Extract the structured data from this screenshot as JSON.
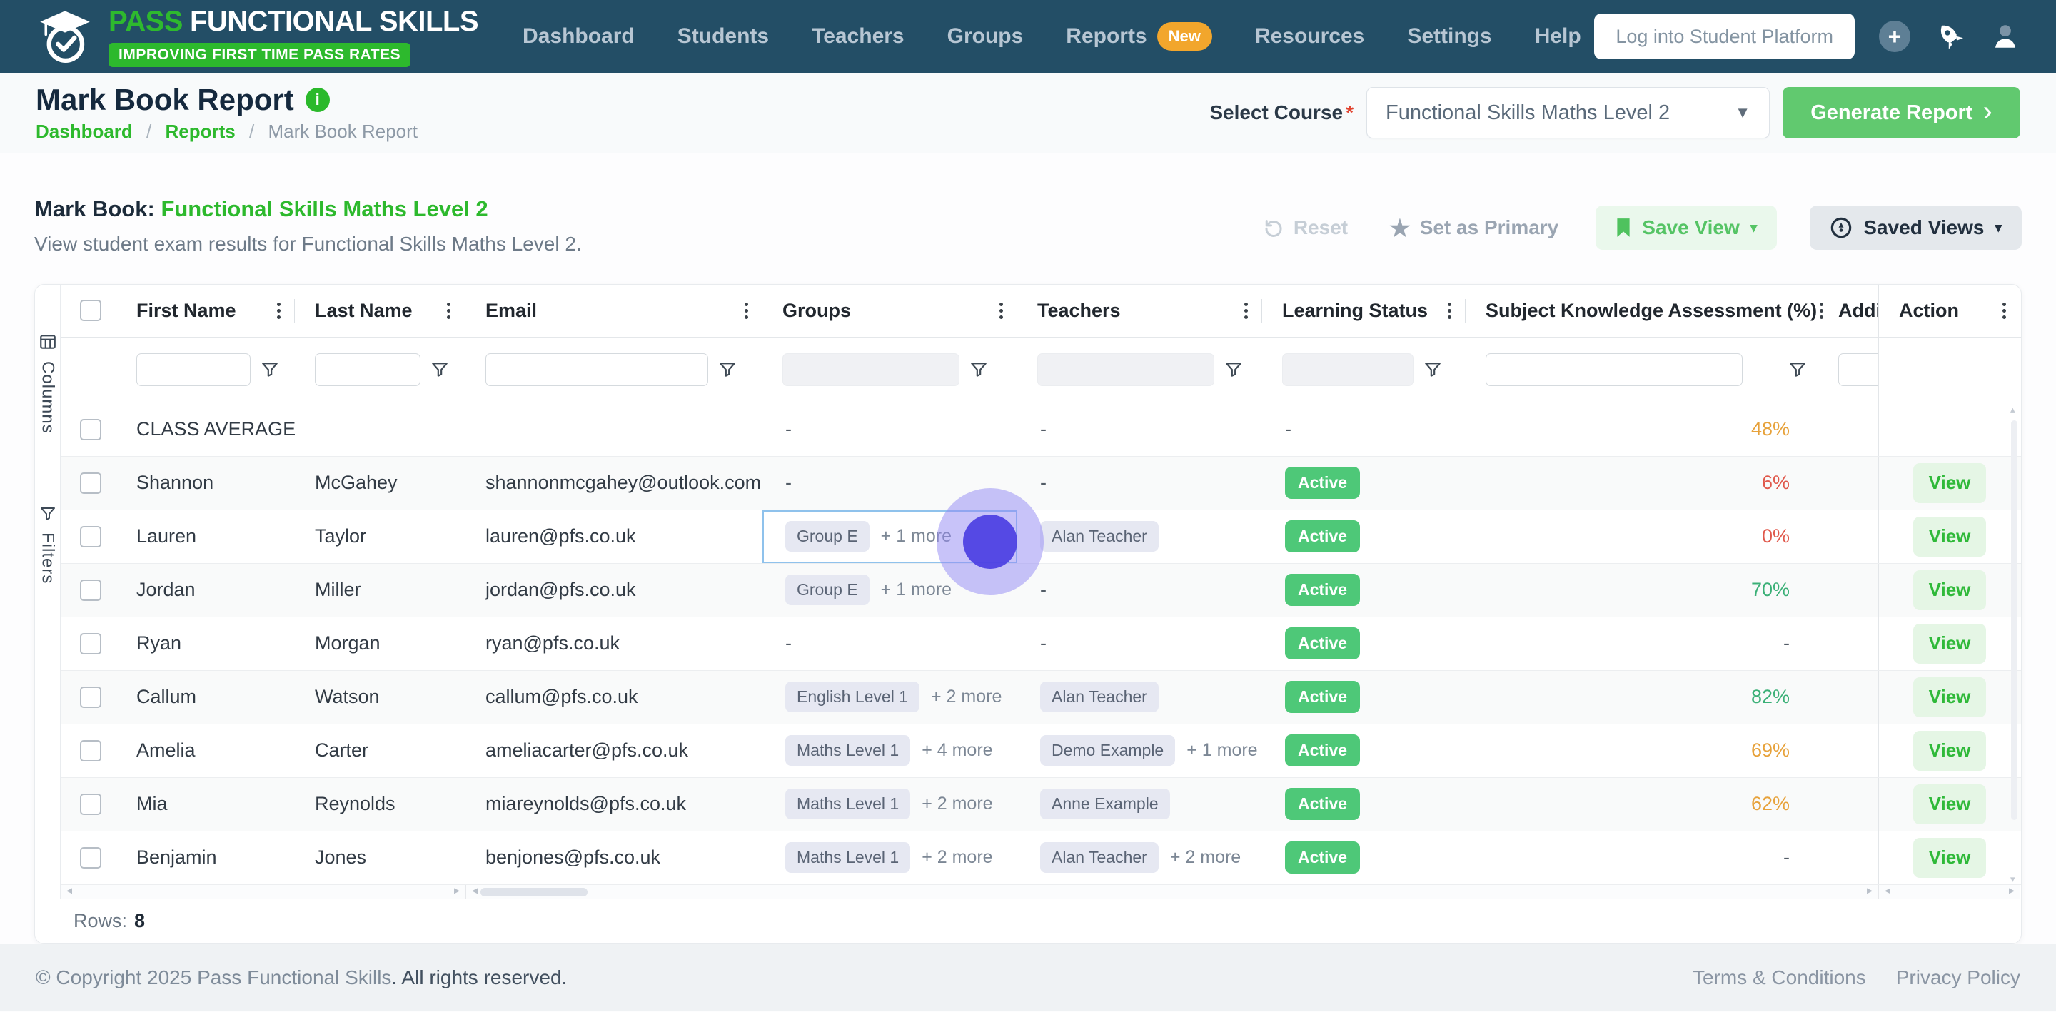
{
  "colors": {
    "brand_green": "#2db92d",
    "navbar": "#234e66",
    "badge_amber": "#f2a62c",
    "generate_green": "#61c96f",
    "active_green": "#4ec878"
  },
  "navbar": {
    "logo": {
      "brand_green": "PASS",
      "brand_white": "FUNCTIONAL SKILLS",
      "tagline": "IMPROVING FIRST TIME PASS RATES"
    },
    "items": [
      {
        "label": "Dashboard"
      },
      {
        "label": "Students"
      },
      {
        "label": "Teachers"
      },
      {
        "label": "Groups"
      },
      {
        "label": "Reports",
        "badge": "New"
      },
      {
        "label": "Resources"
      },
      {
        "label": "Settings"
      },
      {
        "label": "Help"
      }
    ],
    "login_button": "Log into Student Platform",
    "icons": [
      "plus-circle",
      "rocket",
      "user"
    ]
  },
  "page_header": {
    "title": "Mark Book Report",
    "breadcrumb": {
      "links": [
        "Dashboard",
        "Reports"
      ],
      "current": "Mark Book Report",
      "separator": "/"
    },
    "select_course_label": "Select Course",
    "required_mark": "*",
    "course_value": "Functional Skills Maths Level 2",
    "generate_button": "Generate Report"
  },
  "toolbar": {
    "heading_prefix": "Mark Book:",
    "heading_course": "Functional Skills Maths Level 2",
    "subtitle": "View student exam results for Functional Skills Maths Level 2.",
    "reset_label": "Reset",
    "set_primary_label": "Set as Primary",
    "save_view_label": "Save View",
    "saved_views_label": "Saved Views"
  },
  "grid": {
    "side_panels": [
      "Columns",
      "Filters"
    ],
    "columns": [
      "First Name",
      "Last Name",
      "Email",
      "Groups",
      "Teachers",
      "Learning Status",
      "Subject Knowledge Assessment (%)",
      "Addit",
      "Action"
    ],
    "rows": [
      {
        "first": "CLASS AVERAGE",
        "last": "",
        "email": "",
        "group_chip": "",
        "group_more": "",
        "group_dash": "-",
        "teacher_chip": "",
        "teacher_more": "",
        "teacher_dash": "-",
        "status": "-",
        "ska": "48%",
        "ska_level": "amber",
        "view": ""
      },
      {
        "first": "Shannon",
        "last": "McGahey",
        "email": "shannonmcgahey@outlook.com",
        "group_chip": "",
        "group_more": "",
        "group_dash": "-",
        "teacher_chip": "",
        "teacher_more": "",
        "teacher_dash": "-",
        "status": "Active",
        "ska": "6%",
        "ska_level": "red",
        "view": "View"
      },
      {
        "first": "Lauren",
        "last": "Taylor",
        "email": "lauren@pfs.co.uk",
        "group_chip": "Group E",
        "group_more": "+ 1 more",
        "group_dash": "",
        "teacher_chip": "Alan Teacher",
        "teacher_more": "",
        "teacher_dash": "",
        "status": "Active",
        "ska": "0%",
        "ska_level": "red",
        "view": "View",
        "selected_cell": "groups"
      },
      {
        "first": "Jordan",
        "last": "Miller",
        "email": "jordan@pfs.co.uk",
        "group_chip": "Group E",
        "group_more": "+ 1 more",
        "group_dash": "",
        "teacher_chip": "",
        "teacher_more": "",
        "teacher_dash": "-",
        "status": "Active",
        "ska": "70%",
        "ska_level": "green",
        "view": "View"
      },
      {
        "first": "Ryan",
        "last": "Morgan",
        "email": "ryan@pfs.co.uk",
        "group_chip": "",
        "group_more": "",
        "group_dash": "-",
        "teacher_chip": "",
        "teacher_more": "",
        "teacher_dash": "-",
        "status": "Active",
        "ska": "-",
        "ska_level": "none",
        "view": "View"
      },
      {
        "first": "Callum",
        "last": "Watson",
        "email": "callum@pfs.co.uk",
        "group_chip": "English Level 1",
        "group_more": "+ 2 more",
        "group_dash": "",
        "teacher_chip": "Alan Teacher",
        "teacher_more": "",
        "teacher_dash": "",
        "status": "Active",
        "ska": "82%",
        "ska_level": "green",
        "view": "View"
      },
      {
        "first": "Amelia",
        "last": "Carter",
        "email": "ameliacarter@pfs.co.uk",
        "group_chip": "Maths Level 1",
        "group_more": "+ 4 more",
        "group_dash": "",
        "teacher_chip": "Demo Example",
        "teacher_more": "+ 1 more",
        "teacher_dash": "",
        "status": "Active",
        "ska": "69%",
        "ska_level": "amber",
        "view": "View"
      },
      {
        "first": "Mia",
        "last": "Reynolds",
        "email": "miareynolds@pfs.co.uk",
        "group_chip": "Maths Level 1",
        "group_more": "+ 2 more",
        "group_dash": "",
        "teacher_chip": "Anne Example",
        "teacher_more": "",
        "teacher_dash": "",
        "status": "Active",
        "ska": "62%",
        "ska_level": "amber",
        "view": "View"
      },
      {
        "first": "Benjamin",
        "last": "Jones",
        "email": "benjones@pfs.co.uk",
        "group_chip": "Maths Level 1",
        "group_more": "+ 2 more",
        "group_dash": "",
        "teacher_chip": "Alan Teacher",
        "teacher_more": "+ 2 more",
        "teacher_dash": "",
        "status": "Active",
        "ska": "-",
        "ska_level": "none",
        "view": "View"
      }
    ],
    "rows_label": "Rows:",
    "rows_count": "8",
    "ska_colors": {
      "red": "#e0584b",
      "amber": "#e7a23b",
      "green": "#3bb077"
    }
  },
  "footer": {
    "copyright_link": "© Copyright 2025 Pass Functional Skills",
    "copyright_rest": ". All rights reserved.",
    "links": [
      "Terms & Conditions",
      "Privacy Policy"
    ]
  }
}
